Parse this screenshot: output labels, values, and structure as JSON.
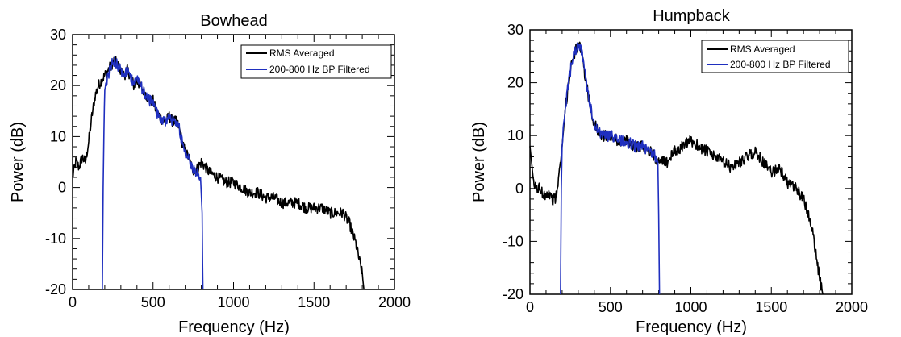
{
  "figure": {
    "charts": [
      {
        "title": "Bowhead",
        "xlabel": "Frequency (Hz)",
        "ylabel": "Power (dB)"
      },
      {
        "title": "Humpback",
        "xlabel": "Frequency (Hz)",
        "ylabel": "Power (dB)"
      }
    ]
  },
  "chart_data": [
    {
      "type": "line",
      "title": "Bowhead",
      "xlabel": "Frequency (Hz)",
      "ylabel": "Power (dB)",
      "xlim": [
        0,
        2000
      ],
      "ylim": [
        -20,
        30
      ],
      "xticks": [
        0,
        500,
        1000,
        1500,
        2000
      ],
      "yticks": [
        -20,
        -10,
        0,
        10,
        20,
        30
      ],
      "grid": false,
      "legend_position": "top-right",
      "series": [
        {
          "name": "RMS Averaged",
          "color": "#000000",
          "x": [
            0,
            20,
            40,
            60,
            80,
            100,
            120,
            140,
            160,
            180,
            200,
            220,
            240,
            260,
            280,
            300,
            320,
            340,
            360,
            380,
            400,
            420,
            440,
            460,
            480,
            500,
            520,
            540,
            560,
            580,
            600,
            620,
            640,
            660,
            680,
            700,
            720,
            740,
            760,
            780,
            800,
            850,
            900,
            950,
            1000,
            1050,
            1100,
            1150,
            1200,
            1250,
            1300,
            1350,
            1400,
            1450,
            1500,
            1550,
            1600,
            1650,
            1680,
            1700,
            1720,
            1740,
            1760,
            1780,
            1800,
            1810
          ],
          "y": [
            2,
            5,
            4,
            6,
            5,
            9,
            14,
            18,
            20,
            21,
            22,
            23,
            24,
            25,
            24,
            23,
            22,
            23,
            22,
            20,
            21,
            20,
            19,
            18,
            17,
            17,
            15,
            14,
            13,
            13,
            14,
            13,
            13,
            12,
            9,
            7,
            6,
            4,
            3,
            4,
            5,
            3,
            2,
            1,
            1,
            0,
            -1,
            -1,
            -2,
            -2,
            -3,
            -3,
            -3,
            -4,
            -4,
            -4,
            -5,
            -5,
            -5,
            -6,
            -7,
            -9,
            -11,
            -14,
            -17,
            -20
          ]
        },
        {
          "name": "200-800 Hz BP Filtered",
          "color": "#1f2fbf",
          "x": [
            185,
            190,
            195,
            200,
            210,
            220,
            240,
            260,
            280,
            300,
            320,
            340,
            360,
            380,
            400,
            420,
            440,
            460,
            480,
            500,
            520,
            540,
            560,
            580,
            600,
            620,
            640,
            660,
            680,
            700,
            720,
            740,
            760,
            780,
            795,
            805,
            808,
            810
          ],
          "y": [
            -20,
            0,
            12,
            18,
            21,
            22,
            24,
            25,
            24,
            23,
            22,
            23,
            22,
            20,
            21,
            20,
            19,
            18,
            17,
            17,
            15,
            14,
            13,
            13,
            14,
            13,
            13,
            12,
            9,
            7,
            6,
            4,
            3,
            3,
            2,
            -5,
            -15,
            -20
          ]
        }
      ]
    },
    {
      "type": "line",
      "title": "Humpback",
      "xlabel": "Frequency (Hz)",
      "ylabel": "Power (dB)",
      "xlim": [
        0,
        2000
      ],
      "ylim": [
        -20,
        30
      ],
      "xticks": [
        0,
        500,
        1000,
        1500,
        2000
      ],
      "yticks": [
        -20,
        -10,
        0,
        10,
        20,
        30
      ],
      "grid": false,
      "legend_position": "top-right",
      "series": [
        {
          "name": "RMS Averaged",
          "color": "#000000",
          "x": [
            0,
            20,
            40,
            60,
            80,
            100,
            120,
            140,
            160,
            180,
            200,
            220,
            240,
            260,
            280,
            300,
            320,
            340,
            360,
            380,
            400,
            450,
            500,
            550,
            600,
            650,
            700,
            750,
            800,
            850,
            900,
            950,
            1000,
            1050,
            1100,
            1150,
            1200,
            1250,
            1300,
            1350,
            1400,
            1450,
            1500,
            1550,
            1600,
            1650,
            1700,
            1720,
            1740,
            1760,
            1780,
            1800,
            1820
          ],
          "y": [
            8,
            1,
            0,
            0,
            -1,
            -1,
            -1,
            -2,
            -2,
            2,
            8,
            15,
            20,
            24,
            26,
            27,
            26,
            22,
            18,
            15,
            12,
            10,
            10,
            9,
            9,
            8,
            8,
            7,
            5,
            5,
            7,
            8,
            9,
            8,
            7,
            6,
            5,
            4,
            5,
            6,
            7,
            5,
            3,
            4,
            1,
            0,
            -2,
            -4,
            -6,
            -9,
            -13,
            -17,
            -20
          ]
        },
        {
          "name": "200-800 Hz BP Filtered",
          "color": "#1f2fbf",
          "x": [
            190,
            195,
            200,
            210,
            220,
            240,
            260,
            280,
            300,
            320,
            340,
            360,
            380,
            400,
            450,
            500,
            550,
            600,
            650,
            700,
            750,
            780,
            795,
            800,
            805
          ],
          "y": [
            -20,
            0,
            8,
            12,
            15,
            20,
            24,
            26,
            27,
            26,
            22,
            18,
            15,
            12,
            10,
            10,
            9,
            9,
            8,
            8,
            7,
            6,
            5,
            -5,
            -20
          ]
        }
      ]
    }
  ]
}
